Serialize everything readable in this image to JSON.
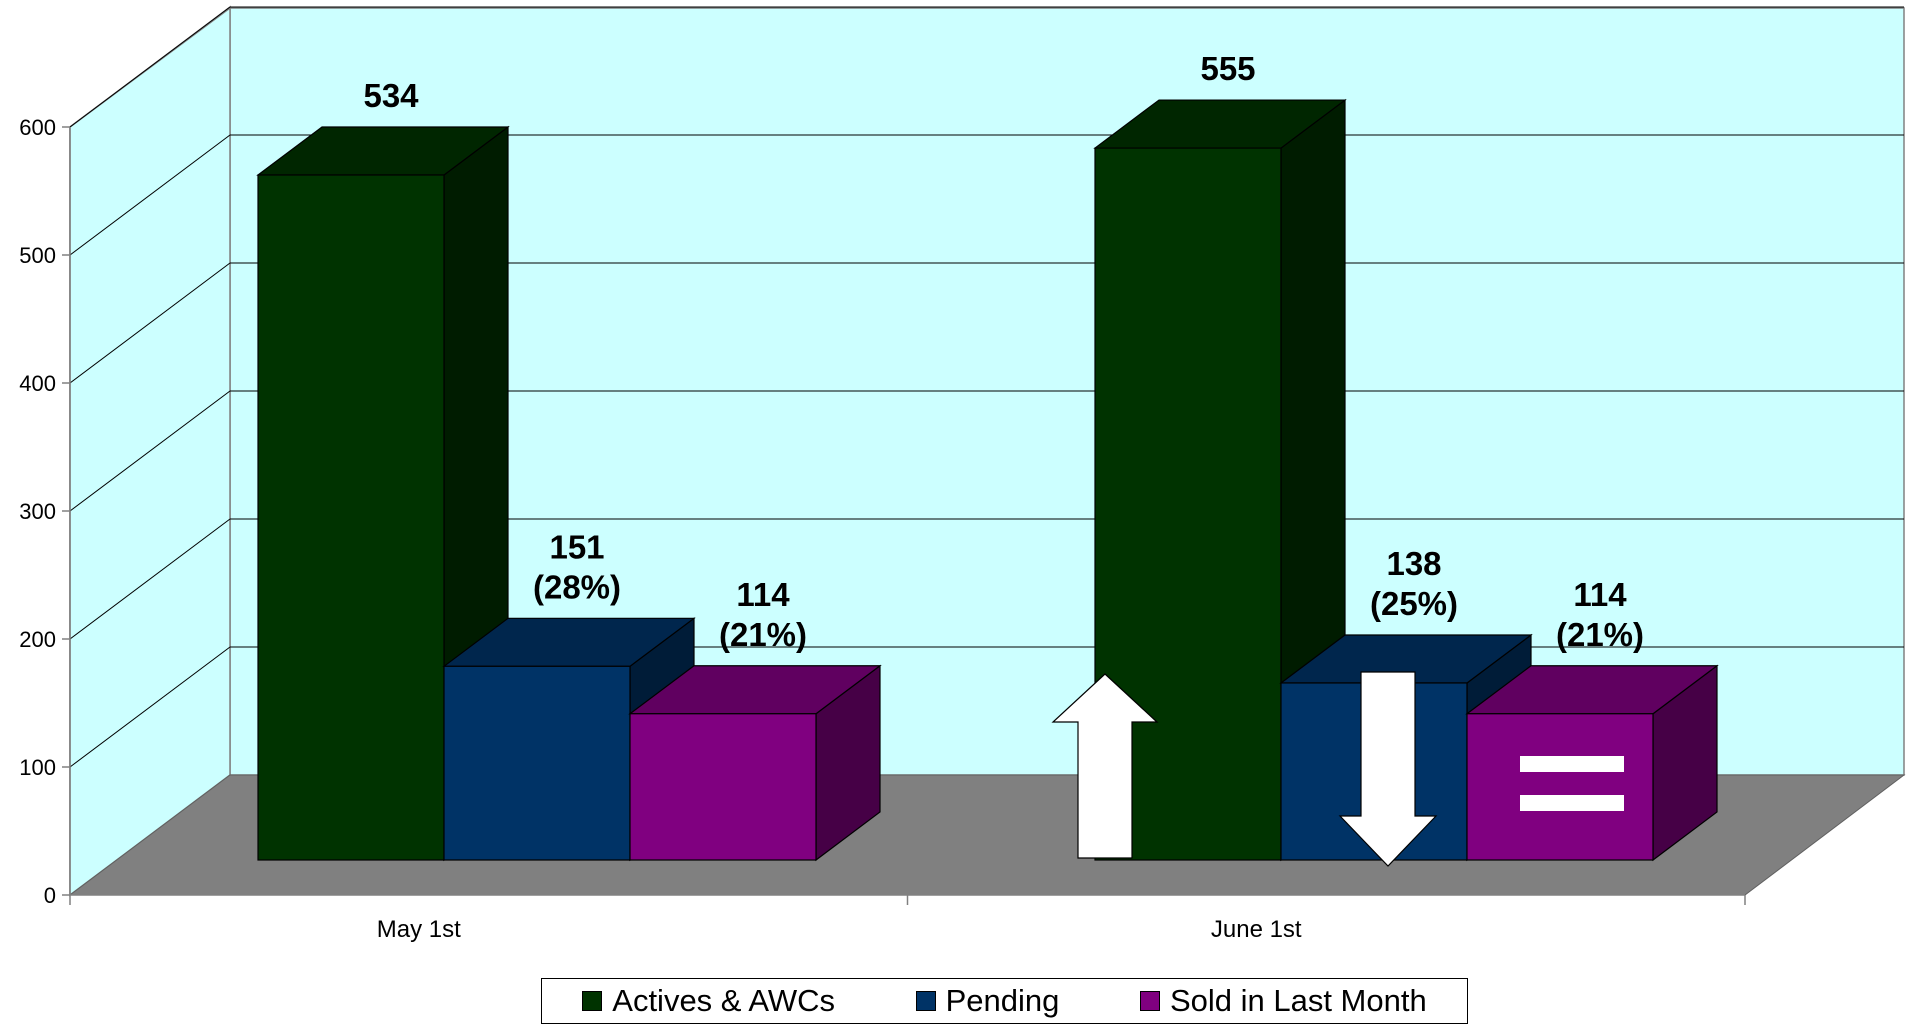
{
  "chart_data": {
    "type": "bar",
    "categories": [
      "May 1st",
      "June 1st"
    ],
    "series": [
      {
        "name": "Actives & AWCs",
        "values": [
          534,
          555
        ],
        "labels": [
          "534",
          "555"
        ]
      },
      {
        "name": "Pending",
        "values": [
          151,
          138
        ],
        "labels": [
          "151\n(28%)",
          "138\n(25%)"
        ]
      },
      {
        "name": "Sold in Last Month",
        "values": [
          114,
          114
        ],
        "labels": [
          "114\n(21%)",
          "114\n(21%)"
        ]
      }
    ],
    "ylim": [
      0,
      600
    ],
    "yticks": [
      0,
      100,
      200,
      300,
      400,
      500,
      600
    ],
    "grid": true,
    "legend_position": "bottom",
    "three_d": true,
    "colors": {
      "series": [
        "#003300",
        "#003366",
        "#800080"
      ],
      "back_wall": "#ccffff",
      "floor": "#808080",
      "grid": "#000000"
    },
    "annotations": [
      {
        "category": "June 1st",
        "series": "Actives & AWCs",
        "icon": "up-arrow-icon"
      },
      {
        "category": "June 1st",
        "series": "Pending",
        "icon": "down-arrow-icon"
      },
      {
        "category": "June 1st",
        "series": "Sold in Last Month",
        "icon": "equals-icon"
      }
    ]
  }
}
